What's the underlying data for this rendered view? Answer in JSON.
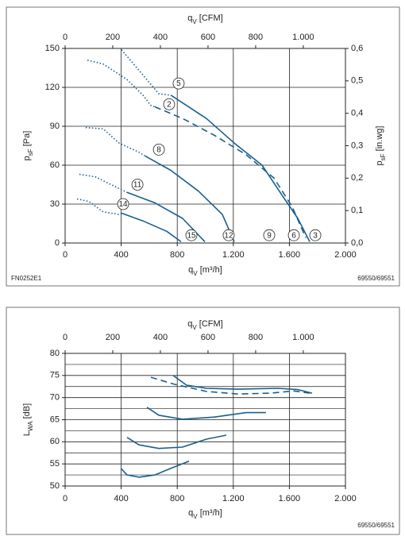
{
  "chart_data": [
    {
      "type": "line",
      "xlabel": {
        "symbol": "q",
        "subscript": "V",
        "unit": " [m³/h]"
      },
      "ylabel": {
        "symbol": "p",
        "subscript": "sF",
        "unit": " [Pa]"
      },
      "x2label": {
        "symbol": "q",
        "subscript": "V",
        "unit": " [CFM]"
      },
      "y2label": {
        "symbol": "p",
        "subscript": "sF",
        "unit": " [in.wg]"
      },
      "xlim": [
        0,
        2000
      ],
      "xticks": [
        0,
        400,
        800,
        {
          "value": 1200,
          "label": "1.200"
        },
        {
          "value": 1600,
          "label": "1.600"
        },
        {
          "value": 2000,
          "label": "2.000"
        }
      ],
      "x2lim": [
        0,
        1177
      ],
      "x2ticks": [
        0,
        200,
        400,
        600,
        800,
        {
          "value": 1000,
          "label": "1.000"
        }
      ],
      "ylim": [
        0,
        150
      ],
      "yticks": [
        0,
        30,
        60,
        90,
        120,
        150
      ],
      "y2lim": [
        0,
        0.6
      ],
      "y2ticks": [
        {
          "value": 0,
          "label": "0,0"
        },
        {
          "value": 0.1,
          "label": "0,1"
        },
        {
          "value": 0.2,
          "label": "0,2"
        },
        {
          "value": 0.3,
          "label": "0,3"
        },
        {
          "value": 0.4,
          "label": "0,4"
        },
        {
          "value": 0.5,
          "label": "0,5"
        },
        {
          "value": 0.6,
          "label": "0,6"
        }
      ],
      "grid": true,
      "footer_left": "FN0252E1",
      "footer_right": "69550/69551",
      "series": [
        {
          "color": "#1b5f8e",
          "line_style": "dotted",
          "x": [
            402,
            669,
            754
          ],
          "values": [
            149,
            115,
            114
          ]
        },
        {
          "color": "#1b5f8e",
          "line_style": "solid",
          "x": [
            754,
            1008,
            1207,
            1405,
            1547,
            1660,
            1745
          ],
          "values": [
            114,
            96,
            77,
            60,
            37,
            19,
            1
          ]
        },
        {
          "color": "#1b5f8e",
          "line_style": "dotted",
          "x": [
            159,
            272,
            442,
            555,
            612,
            640
          ],
          "values": [
            141,
            138,
            126,
            114,
            106,
            105
          ]
        },
        {
          "color": "#1b5f8e",
          "line_style": "dashed",
          "x": [
            640,
            838,
            1065,
            1292,
            1490,
            1620,
            1717
          ],
          "values": [
            105,
            96,
            83,
            68,
            50,
            28,
            4
          ]
        },
        {
          "color": "#1b5f8e",
          "line_style": "dotted",
          "x": [
            147,
            272,
            385,
            527,
            572
          ],
          "values": [
            89,
            88,
            77,
            70,
            67
          ]
        },
        {
          "color": "#1b5f8e",
          "line_style": "solid",
          "x": [
            572,
            754,
            952,
            1122,
            1207
          ],
          "values": [
            67,
            56,
            40,
            22,
            1
          ]
        },
        {
          "color": "#1b5f8e",
          "line_style": "dotted",
          "x": [
            102,
            215,
            329,
            442
          ],
          "values": [
            53,
            51,
            45,
            39
          ]
        },
        {
          "color": "#1b5f8e",
          "line_style": "solid",
          "x": [
            442,
            640,
            838,
            997
          ],
          "values": [
            39,
            31,
            19,
            1
          ]
        },
        {
          "color": "#1b5f8e",
          "line_style": "dotted",
          "x": [
            85,
            170,
            272,
            385,
            402
          ],
          "values": [
            34,
            32,
            24,
            22,
            23
          ]
        },
        {
          "color": "#1b5f8e",
          "line_style": "solid",
          "x": [
            402,
            555,
            725,
            827
          ],
          "values": [
            23,
            17,
            9,
            1
          ]
        }
      ],
      "annotations": [
        {
          "text": "5",
          "x": 810,
          "y": 123
        },
        {
          "text": "2",
          "x": 742,
          "y": 107
        },
        {
          "text": "8",
          "x": 669,
          "y": 72
        },
        {
          "text": "11",
          "x": 516,
          "y": 45
        },
        {
          "text": "14",
          "x": 414,
          "y": 30
        },
        {
          "text": "15",
          "x": 901,
          "y": 6
        },
        {
          "text": "12",
          "x": 1167,
          "y": 6
        },
        {
          "text": "9",
          "x": 1456,
          "y": 6
        },
        {
          "text": "6",
          "x": 1632,
          "y": 6
        },
        {
          "text": "3",
          "x": 1785,
          "y": 6
        }
      ]
    },
    {
      "type": "line",
      "xlabel": {
        "symbol": "q",
        "subscript": "V",
        "unit": " [m³/h]"
      },
      "ylabel": {
        "symbol": "L",
        "subscript": "WA",
        "unit": " [dB]"
      },
      "x2label": {
        "symbol": "q",
        "subscript": "V",
        "unit": " [CFM]"
      },
      "xlim": [
        0,
        2000
      ],
      "xticks": [
        0,
        400,
        800,
        {
          "value": 1200,
          "label": "1.200"
        },
        {
          "value": 1600,
          "label": "1.600"
        },
        {
          "value": 2000,
          "label": "2.000"
        }
      ],
      "x2lim": [
        0,
        1177
      ],
      "x2ticks": [
        0,
        200,
        400,
        600,
        800,
        {
          "value": 1000,
          "label": "1.000"
        }
      ],
      "ylim": [
        50,
        80
      ],
      "yticks": [
        50,
        55,
        60,
        65,
        70,
        75,
        80
      ],
      "y_minor_grid": [
        52.5,
        57.5,
        62.5,
        67.5,
        72.5,
        77.5
      ],
      "grid": true,
      "footer_right": "69550/69551",
      "series": [
        {
          "color": "#1b5f8e",
          "line_style": "solid",
          "x": [
            771,
            867,
            1008,
            1235,
            1518,
            1660,
            1762
          ],
          "values": [
            75.0,
            72.8,
            72.1,
            71.9,
            72.1,
            71.8,
            71.0
          ]
        },
        {
          "color": "#1b5f8e",
          "line_style": "dashed",
          "x": [
            612,
            782,
            1008,
            1235,
            1462,
            1632,
            1745
          ],
          "values": [
            74.6,
            73.0,
            71.4,
            70.8,
            71.0,
            71.5,
            71.0
          ]
        },
        {
          "color": "#1b5f8e",
          "line_style": "solid",
          "x": [
            584,
            669,
            838,
            1065,
            1292,
            1433
          ],
          "values": [
            67.8,
            66.0,
            65.1,
            65.6,
            66.6,
            66.6
          ]
        },
        {
          "color": "#1b5f8e",
          "line_style": "solid",
          "x": [
            442,
            527,
            669,
            838,
            1008,
            1150
          ],
          "values": [
            61.0,
            59.3,
            58.5,
            58.8,
            60.6,
            61.5
          ]
        },
        {
          "color": "#1b5f8e",
          "line_style": "solid",
          "x": [
            397,
            442,
            527,
            640,
            754,
            884
          ],
          "values": [
            54.0,
            52.5,
            52.0,
            52.5,
            54.0,
            55.6
          ]
        }
      ]
    }
  ]
}
